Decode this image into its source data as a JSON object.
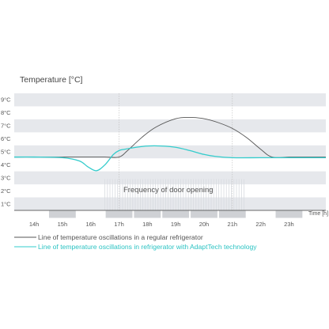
{
  "chart_data": {
    "type": "line",
    "title": "Temperature [°C]",
    "xlabel": "Time [h]",
    "ylabel": "",
    "x_ticks": [
      "14h",
      "15h",
      "16h",
      "17h",
      "18h",
      "19h",
      "20h",
      "21h",
      "22h",
      "23h"
    ],
    "y_ticks": [
      "1°C",
      "2°C",
      "3°C",
      "4°C",
      "5°C",
      "6°C",
      "7°C",
      "8°C",
      "9°C"
    ],
    "xlim": [
      13.3,
      24.3
    ],
    "ylim": [
      0.5,
      9.5
    ],
    "grid": "horizontal bands",
    "annotation": "Frequency of door opening",
    "door_openings": {
      "intervals": [
        [
          14.5,
          15.5
        ],
        [
          16.5,
          17.5
        ],
        [
          17.5,
          18.5
        ],
        [
          18.5,
          19.5
        ],
        [
          19.5,
          20.5
        ],
        [
          20.5,
          21.5
        ],
        [
          22.5,
          23.5
        ]
      ],
      "frequent_range": [
        16.5,
        21.5
      ]
    },
    "series": [
      {
        "name": "Line of temperature oscillations in a regular refrigerator",
        "color": "#555555",
        "x": [
          13.3,
          14,
          15,
          16,
          16.5,
          17,
          17.3,
          17.8,
          18.3,
          19,
          19.5,
          20,
          20.5,
          21,
          21.5,
          22,
          22.4,
          23,
          23.5,
          24.3
        ],
        "y": [
          4.6,
          4.6,
          4.6,
          4.6,
          4.6,
          4.6,
          5.1,
          6.1,
          6.9,
          7.55,
          7.65,
          7.55,
          7.25,
          6.8,
          6.1,
          5.2,
          4.6,
          4.6,
          4.6,
          4.6
        ]
      },
      {
        "name": "Line of temperature oscillations in refrigerator with AdaptTech technology",
        "color": "#33cccc",
        "x": [
          13.3,
          14,
          15,
          15.6,
          15.9,
          16.2,
          16.5,
          16.8,
          17,
          17.2,
          17.6,
          18,
          18.5,
          19,
          19.5,
          20,
          20.4,
          21,
          22,
          23,
          24.3
        ],
        "y": [
          4.6,
          4.6,
          4.55,
          4.3,
          3.85,
          3.55,
          4.0,
          4.8,
          5.1,
          5.2,
          5.35,
          5.45,
          5.45,
          5.35,
          5.1,
          4.8,
          4.65,
          4.55,
          4.55,
          4.55,
          4.55
        ]
      }
    ]
  }
}
